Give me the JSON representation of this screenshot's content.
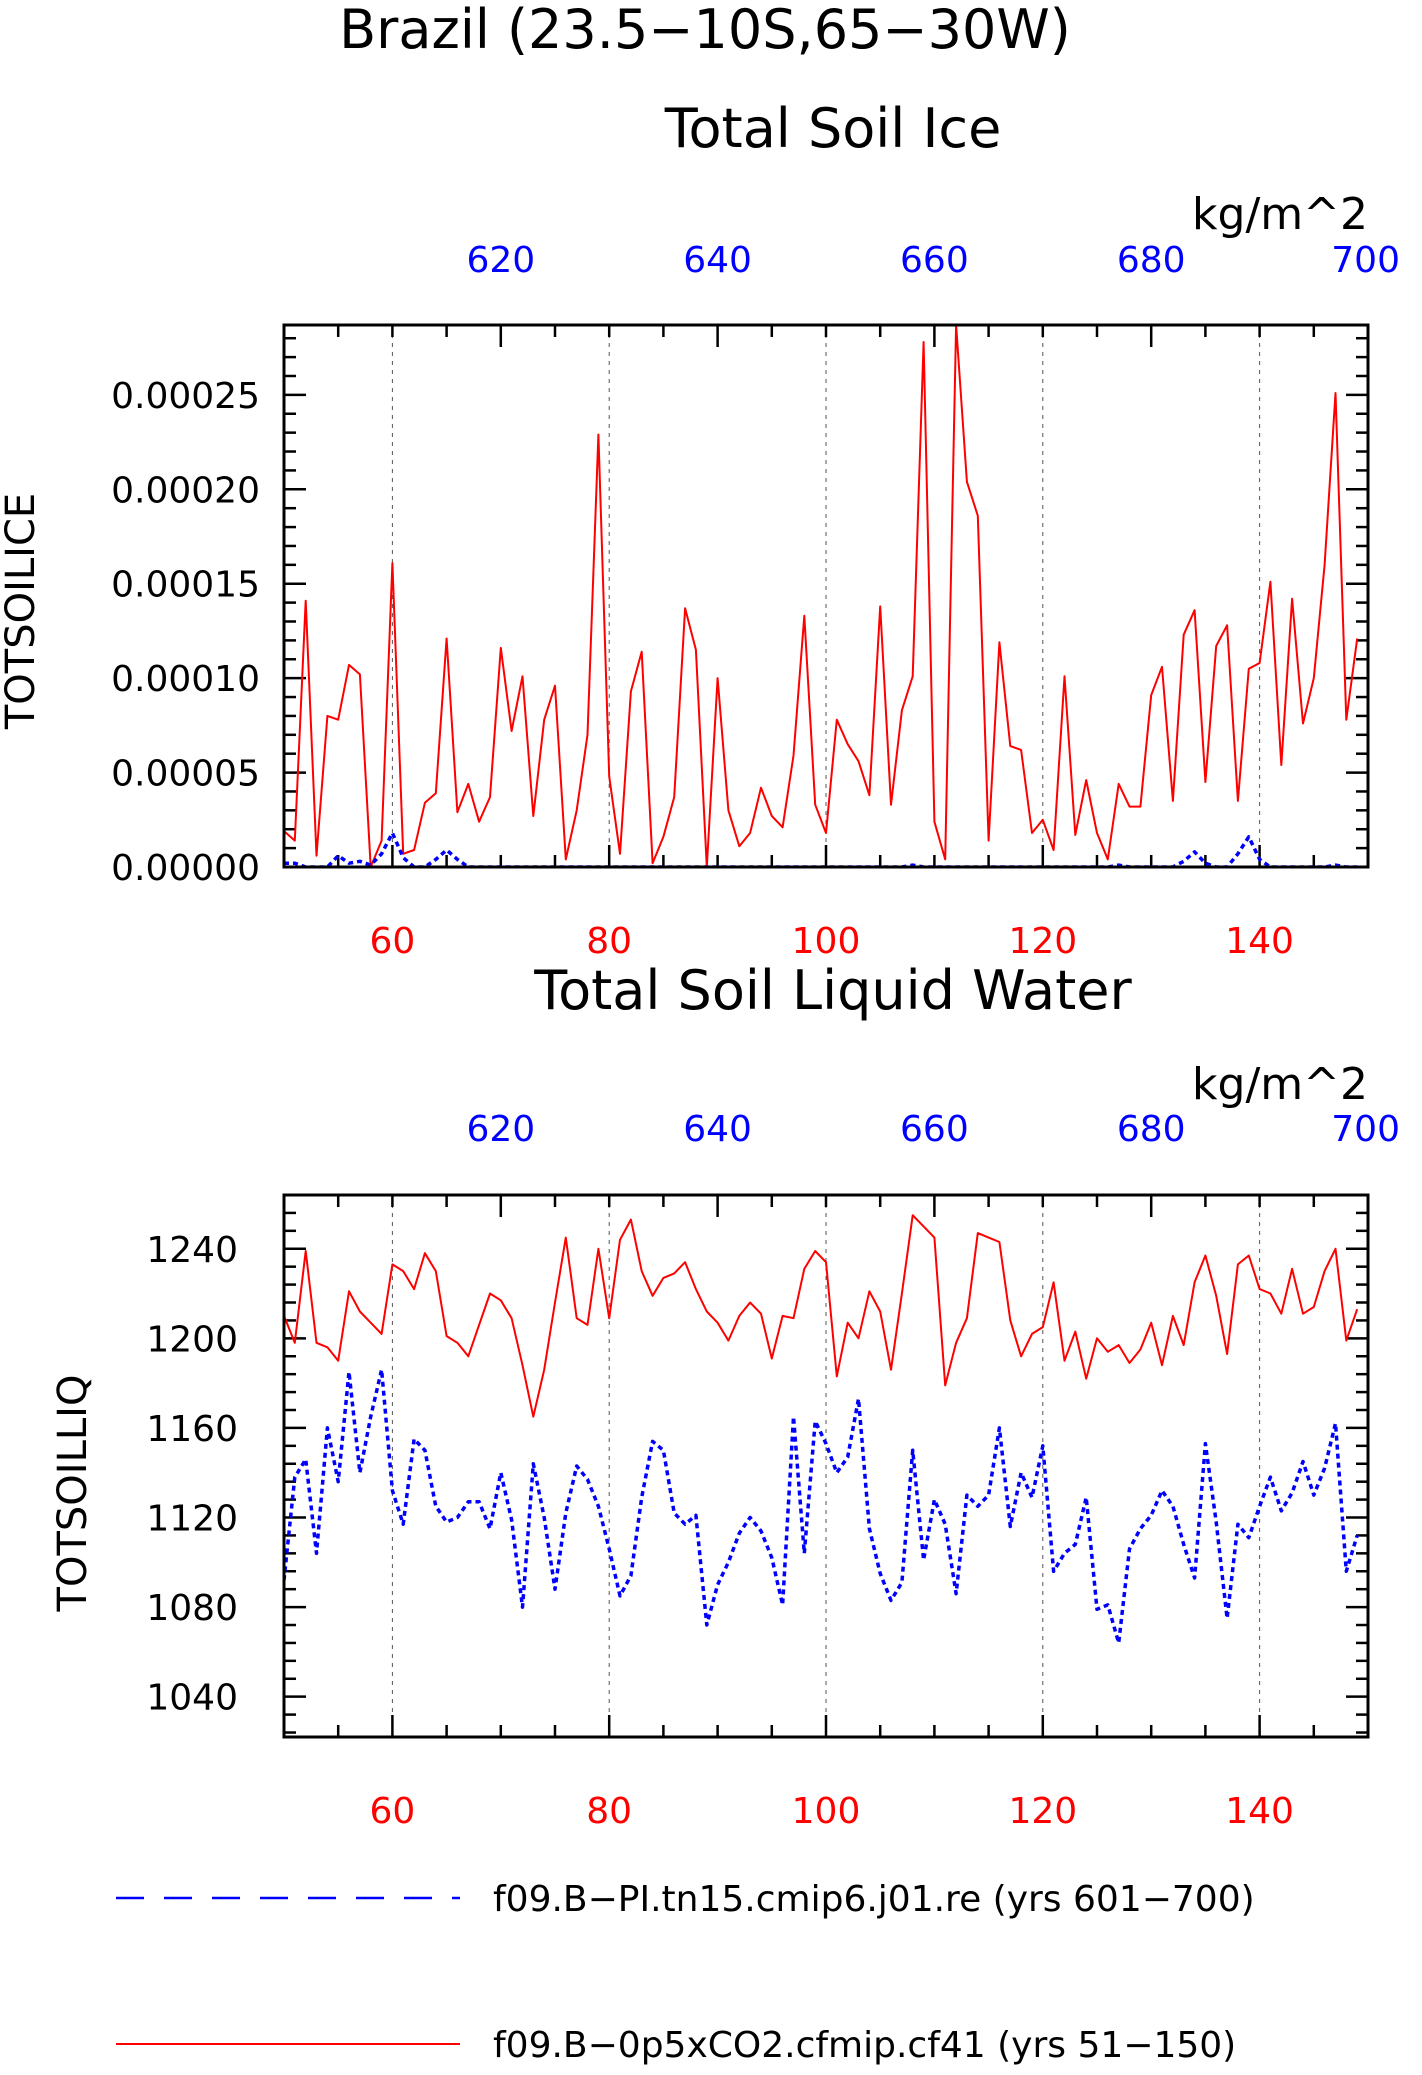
{
  "page": {
    "title": "Brazil (23.5−10S,65−30W)"
  },
  "colors": {
    "red_series": "#ff0000",
    "blue_series": "#0000ff",
    "axis": "#000000"
  },
  "legend": {
    "placement": "bottom",
    "items": [
      {
        "label": "f09.B−PI.tn15.cmip6.j01.re (yrs 601−700)",
        "style": "dashed",
        "color": "#0000ff"
      },
      {
        "label": "f09.B−0p5xCO2.cfmip.cf41 (yrs 51−150)",
        "style": "solid",
        "color": "#ff0000"
      }
    ]
  },
  "chart_data": [
    {
      "type": "line",
      "title": "Total Soil Ice",
      "units": "kg/m^2",
      "ylabel": "TOTSOILICE",
      "ylim": [
        0,
        0.000287
      ],
      "yticks": [
        "0.00000",
        "0.00005",
        "0.00010",
        "0.00015",
        "0.00020",
        "0.00025"
      ],
      "ytick_values": [
        0,
        5e-05,
        0.0001,
        0.00015,
        0.0002,
        0.00025
      ],
      "xlim_bottom": [
        50,
        150
      ],
      "xticks_bottom": [
        "60",
        "80",
        "100",
        "120",
        "140"
      ],
      "xtick_values_bottom": [
        60,
        80,
        100,
        120,
        140
      ],
      "xlim_top": [
        600,
        700
      ],
      "xticks_top": [
        "620",
        "640",
        "660",
        "680",
        "700"
      ],
      "xtick_values_top": [
        620,
        640,
        660,
        680,
        700
      ],
      "grid": "dashed vertical at bottom major ticks",
      "series": [
        {
          "name": "f09.B−0p5xCO2.cfmip.cf41 (yrs 51−150)",
          "color": "#ff0000",
          "style": "solid",
          "axis": "bottom",
          "x_start": 50,
          "values": [
            1.9e-05,
            1.4e-05,
            0.000141,
            6e-06,
            8e-05,
            7.8e-05,
            0.000107,
            0.000102,
            0.0,
            1.4e-05,
            0.000161,
            7e-06,
            9e-06,
            3.4e-05,
            3.9e-05,
            0.000121,
            2.9e-05,
            4.4e-05,
            2.4e-05,
            3.7e-05,
            0.000116,
            7.2e-05,
            0.000101,
            2.7e-05,
            7.8e-05,
            9.6e-05,
            4e-06,
            3e-05,
            7e-05,
            0.000229,
            4.8e-05,
            7e-06,
            9.3e-05,
            0.000114,
            2e-06,
            1.6e-05,
            3.7e-05,
            0.000137,
            0.000115,
            0.0,
            0.0001,
            3e-05,
            1.1e-05,
            1.8e-05,
            4.2e-05,
            2.7e-05,
            2.1e-05,
            5.9e-05,
            0.000133,
            3.3e-05,
            1.8e-05,
            7.8e-05,
            6.5e-05,
            5.6e-05,
            3.8e-05,
            0.000138,
            3.3e-05,
            8.3e-05,
            0.000101,
            0.000278,
            2.4e-05,
            4e-06,
            0.000287,
            0.000204,
            0.000186,
            1.4e-05,
            0.000119,
            6.4e-05,
            6.2e-05,
            1.8e-05,
            2.5e-05,
            9e-06,
            0.000101,
            1.7e-05,
            4.6e-05,
            1.8e-05,
            4e-06,
            4.4e-05,
            3.2e-05,
            3.2e-05,
            9.1e-05,
            0.000106,
            3.5e-05,
            0.000123,
            0.000136,
            4.5e-05,
            0.000117,
            0.000128,
            3.5e-05,
            0.000105,
            0.000108,
            0.000151,
            5.4e-05,
            0.000142,
            7.6e-05,
            0.0001,
            0.00016,
            0.000251,
            7.8e-05,
            0.000121
          ]
        },
        {
          "name": "f09.B−PI.tn15.cmip6.j01.re (yrs 601−700)",
          "color": "#0000ff",
          "style": "dashed",
          "axis": "top",
          "x_start": 600,
          "values": [
            2e-06,
            2e-06,
            0.0,
            0.0,
            0.0,
            6e-06,
            2e-06,
            3e-06,
            1e-06,
            7e-06,
            1.8e-05,
            5e-06,
            0.0,
            0.0,
            4e-06,
            9e-06,
            4e-06,
            0.0,
            0.0,
            0.0,
            0.0,
            0.0,
            0.0,
            0.0,
            0.0,
            0.0,
            0.0,
            0.0,
            0.0,
            0.0,
            0.0,
            0.0,
            0.0,
            0.0,
            0.0,
            0.0,
            0.0,
            0.0,
            0.0,
            0.0,
            0.0,
            0.0,
            0.0,
            0.0,
            0.0,
            0.0,
            0.0,
            0.0,
            0.0,
            0.0,
            0.0,
            0.0,
            0.0,
            0.0,
            0.0,
            0.0,
            0.0,
            0.0,
            1e-06,
            0.0,
            0.0,
            0.0,
            0.0,
            0.0,
            0.0,
            0.0,
            0.0,
            0.0,
            0.0,
            0.0,
            0.0,
            0.0,
            0.0,
            0.0,
            0.0,
            0.0,
            0.0,
            1e-06,
            0.0,
            0.0,
            0.0,
            0.0,
            0.0,
            3e-06,
            8e-06,
            2e-06,
            0.0,
            0.0,
            7e-06,
            1.6e-05,
            4e-06,
            0.0,
            0.0,
            0.0,
            0.0,
            0.0,
            0.0,
            1e-06,
            0.0,
            0.0
          ]
        }
      ]
    },
    {
      "type": "line",
      "title": "Total Soil Liquid Water",
      "units": "kg/m^2",
      "ylabel": "TOTSOILLIQ",
      "ylim": [
        1022,
        1264
      ],
      "yticks": [
        "1040",
        "1080",
        "1120",
        "1160",
        "1200",
        "1240"
      ],
      "ytick_values": [
        1040,
        1080,
        1120,
        1160,
        1200,
        1240
      ],
      "xlim_bottom": [
        50,
        150
      ],
      "xticks_bottom": [
        "60",
        "80",
        "100",
        "120",
        "140"
      ],
      "xtick_values_bottom": [
        60,
        80,
        100,
        120,
        140
      ],
      "xlim_top": [
        600,
        700
      ],
      "xticks_top": [
        "620",
        "640",
        "660",
        "680",
        "700"
      ],
      "xtick_values_top": [
        620,
        640,
        660,
        680,
        700
      ],
      "grid": "dashed vertical at bottom major ticks",
      "series": [
        {
          "name": "f09.B−0p5xCO2.cfmip.cf41 (yrs 51−150)",
          "color": "#ff0000",
          "style": "solid",
          "axis": "bottom",
          "x_start": 50,
          "values": [
            1210,
            1198,
            1239,
            1198,
            1196,
            1190,
            1221,
            1212,
            1207,
            1202,
            1233,
            1230,
            1222,
            1238,
            1230,
            1201,
            1198,
            1192,
            1206,
            1220,
            1217,
            1209,
            1188,
            1165,
            1186,
            1216,
            1245,
            1209,
            1206,
            1240,
            1209,
            1244,
            1253,
            1230,
            1219,
            1227,
            1229,
            1234,
            1222,
            1212,
            1207,
            1199,
            1210,
            1216,
            1211,
            1191,
            1210,
            1209,
            1231,
            1239,
            1234,
            1183,
            1207,
            1200,
            1221,
            1212,
            1186,
            1220,
            1255,
            1250,
            1245,
            1179,
            1198,
            1209,
            1247,
            1245,
            1243,
            1208,
            1192,
            1202,
            1205,
            1225,
            1190,
            1203,
            1182,
            1200,
            1194,
            1197,
            1189,
            1195,
            1207,
            1188,
            1210,
            1197,
            1225,
            1237,
            1219,
            1193,
            1233,
            1237,
            1222,
            1220,
            1211,
            1231,
            1211,
            1214,
            1230,
            1240,
            1199,
            1213
          ]
        },
        {
          "name": "f09.B−PI.tn15.cmip6.j01.re (yrs 601−700)",
          "color": "#0000ff",
          "style": "dashed",
          "axis": "top",
          "x_start": 600,
          "values": [
            1092,
            1138,
            1146,
            1104,
            1160,
            1136,
            1185,
            1140,
            1165,
            1186,
            1132,
            1117,
            1155,
            1150,
            1125,
            1118,
            1120,
            1127,
            1127,
            1115,
            1140,
            1119,
            1080,
            1144,
            1120,
            1088,
            1122,
            1143,
            1137,
            1125,
            1106,
            1085,
            1094,
            1129,
            1154,
            1150,
            1122,
            1117,
            1121,
            1072,
            1090,
            1100,
            1113,
            1120,
            1114,
            1102,
            1081,
            1165,
            1104,
            1163,
            1153,
            1140,
            1147,
            1173,
            1115,
            1095,
            1083,
            1091,
            1150,
            1101,
            1128,
            1117,
            1086,
            1130,
            1125,
            1130,
            1160,
            1116,
            1140,
            1129,
            1152,
            1096,
            1104,
            1108,
            1129,
            1079,
            1081,
            1064,
            1106,
            1115,
            1121,
            1132,
            1125,
            1108,
            1093,
            1153,
            1118,
            1075,
            1117,
            1111,
            1125,
            1138,
            1123,
            1131,
            1145,
            1130,
            1142,
            1162,
            1096,
            1112
          ]
        }
      ]
    }
  ]
}
